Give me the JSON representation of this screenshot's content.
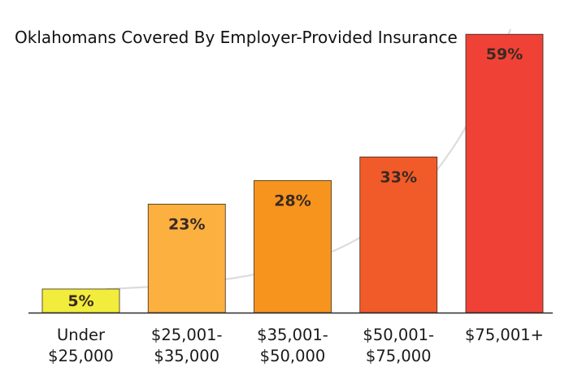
{
  "chart_data": {
    "type": "bar",
    "title": "Oklahomans Covered By Employer-Provided Insurance",
    "xlabel": "",
    "ylabel": "",
    "ylim": [
      0,
      60
    ],
    "grid": false,
    "legend": "none",
    "categories": [
      [
        "Under",
        "$25,000"
      ],
      [
        "$25,001-",
        "$35,000"
      ],
      [
        "$35,001-",
        "$50,000"
      ],
      [
        "$50,001-",
        "$75,000"
      ],
      [
        "$75,001+"
      ]
    ],
    "values": [
      5,
      23,
      28,
      33,
      59
    ],
    "data_labels": [
      "5%",
      "23%",
      "28%",
      "33%",
      "59%"
    ],
    "colors": [
      "#f2ec3c",
      "#fbb040",
      "#f7941d",
      "#f15a29",
      "#ef4136"
    ],
    "trend_line_color": "#dcdcdc"
  }
}
